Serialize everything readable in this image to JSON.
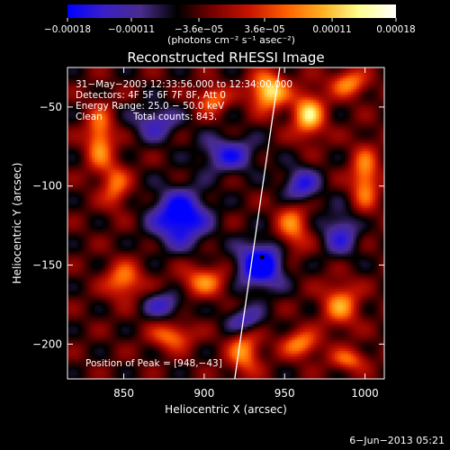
{
  "chart_data": {
    "type": "heatmap",
    "title": "Reconstructed RHESSI Image",
    "xlabel": "Heliocentric X (arcsec)",
    "ylabel": "Heliocentric Y (arcsec)",
    "xlim": [
      815,
      1012
    ],
    "ylim": [
      -222,
      -25
    ],
    "x_ticks": [
      850,
      900,
      950,
      1000
    ],
    "x_tick_labels": [
      "850",
      "900",
      "950",
      "1000"
    ],
    "y_ticks": [
      -200,
      -150,
      -100,
      -50
    ],
    "y_tick_labels": [
      "−200",
      "−150",
      "−100",
      "−50"
    ],
    "colorbar": {
      "range": [
        -0.00018,
        0.00018
      ],
      "tick_values": [
        -0.00018,
        -0.00011,
        -3.6e-05,
        3.6e-05,
        0.00011,
        0.00018
      ],
      "tick_labels": [
        "−0.00018",
        "−0.00011",
        "−3.6e−05",
        "3.6e−05",
        "0.00011",
        "0.00018"
      ],
      "units_label": "(photons cm⁻² s⁻¹ asec⁻²)",
      "colors": [
        "#0000ff",
        "#3a1fc8",
        "#4a2c8c",
        "#000000",
        "#7a0000",
        "#c81400",
        "#ff6000",
        "#ffb020",
        "#ffff90",
        "#ffffff"
      ]
    },
    "annotations": {
      "time": "31−May−2003 12:33:56.000 to 12:34:00.000",
      "detectors": "Detectors: 4F 5F 6F 7F 8F, Att 0",
      "energy": "Energy Range: 25.0 − 50.0 keV",
      "clean": "Clean",
      "counts": "Total counts: 843.",
      "peak": "Position of Peak = [948,−43]"
    },
    "limb_line": {
      "x": [
        919,
        947
      ],
      "y": [
        -222,
        -25
      ]
    },
    "marker_point": {
      "x": 936,
      "y": -145
    },
    "image_sources": [
      {
        "x": 940,
        "y": -40,
        "value": 0.00018,
        "sx": 8,
        "sy": 8
      },
      {
        "x": 965,
        "y": -55,
        "value": 0.00016,
        "sx": 7,
        "sy": 10
      },
      {
        "x": 990,
        "y": -35,
        "value": 0.00012,
        "sx": 8,
        "sy": 6
      },
      {
        "x": 835,
        "y": -70,
        "value": 0.00013,
        "sx": 6,
        "sy": 14
      },
      {
        "x": 845,
        "y": -100,
        "value": 0.0001,
        "sx": 6,
        "sy": 10
      },
      {
        "x": 850,
        "y": -160,
        "value": 0.00012,
        "sx": 8,
        "sy": 8
      },
      {
        "x": 900,
        "y": -160,
        "value": 0.00011,
        "sx": 10,
        "sy": 7
      },
      {
        "x": 880,
        "y": -195,
        "value": 0.00011,
        "sx": 9,
        "sy": 6
      },
      {
        "x": 925,
        "y": -205,
        "value": 0.00012,
        "sx": 7,
        "sy": 10
      },
      {
        "x": 955,
        "y": -125,
        "value": 0.00011,
        "sx": 7,
        "sy": 12
      },
      {
        "x": 1000,
        "y": -95,
        "value": 0.00013,
        "sx": 6,
        "sy": 14
      },
      {
        "x": 985,
        "y": -175,
        "value": 0.00012,
        "sx": 8,
        "sy": 10
      },
      {
        "x": 960,
        "y": -200,
        "value": 0.00012,
        "sx": 8,
        "sy": 6
      },
      {
        "x": 990,
        "y": -210,
        "value": 0.0001,
        "sx": 8,
        "sy": 5
      },
      {
        "x": 905,
        "y": -45,
        "value": 0.00011,
        "sx": 7,
        "sy": 6
      },
      {
        "x": 885,
        "y": -120,
        "value": -0.00017,
        "sx": 12,
        "sy": 12
      },
      {
        "x": 915,
        "y": -80,
        "value": -0.00011,
        "sx": 12,
        "sy": 8
      },
      {
        "x": 935,
        "y": -150,
        "value": -0.00018,
        "sx": 10,
        "sy": 10
      },
      {
        "x": 960,
        "y": -100,
        "value": -0.00012,
        "sx": 8,
        "sy": 8
      },
      {
        "x": 870,
        "y": -60,
        "value": -9e-05,
        "sx": 10,
        "sy": 8
      },
      {
        "x": 985,
        "y": -130,
        "value": -0.0001,
        "sx": 8,
        "sy": 10
      },
      {
        "x": 875,
        "y": -175,
        "value": -9e-05,
        "sx": 9,
        "sy": 6
      },
      {
        "x": 925,
        "y": -185,
        "value": -0.0001,
        "sx": 8,
        "sy": 6
      }
    ]
  },
  "footer": {
    "date": "6−Jun−2013 05:21"
  }
}
